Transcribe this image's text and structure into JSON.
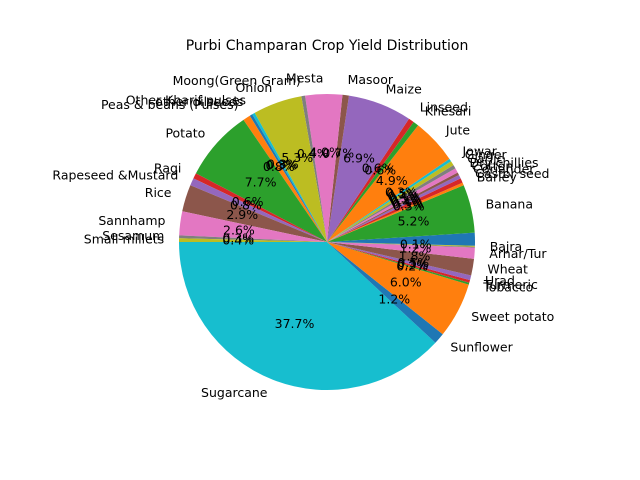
{
  "chart_data": {
    "type": "pie",
    "title": "Purbi Champaran Crop Yield Distribution",
    "start_angle_deg": 180,
    "direction": "counterclockwise",
    "label_threshold_pct": 0,
    "slices": [
      {
        "label": "Sugarcane",
        "value": 37.7,
        "pct": "37.7%",
        "color": "#17becf"
      },
      {
        "label": "Sunflower",
        "value": 1.2,
        "pct": "1.2%",
        "color": "#1f77b4"
      },
      {
        "label": "Sweet potato",
        "value": 6.0,
        "pct": "6.0%",
        "color": "#ff7f0e"
      },
      {
        "label": "Tobacco",
        "value": 0.2,
        "pct": "0.2%",
        "color": "#2ca02c"
      },
      {
        "label": "Turmeric",
        "value": 0.3,
        "pct": "0.3%",
        "color": "#d62728"
      },
      {
        "label": "Urad",
        "value": 0.5,
        "pct": "0.5%",
        "color": "#9467bd"
      },
      {
        "label": "Wheat",
        "value": 1.8,
        "pct": "1.8%",
        "color": "#8c564b"
      },
      {
        "label": "Arhar/Tur",
        "value": 1.2,
        "pct": "1.2%",
        "color": "#e377c2"
      },
      {
        "label": "Bajra",
        "value": 0.1,
        "pct": "0.1%",
        "color": "#7f7f7f"
      },
      {
        "label": "",
        "value": 0.1,
        "pct": "",
        "color": "#bcbd22"
      },
      {
        "label": "",
        "value": 1.4,
        "pct": "",
        "color": "#1f77b4"
      },
      {
        "label": "Banana",
        "value": 5.2,
        "pct": "5.2%",
        "color": "#2ca02c"
      },
      {
        "label": "Barley",
        "value": 0.3,
        "pct": "0.3%",
        "color": "#ff7f0e"
      },
      {
        "label": "Castor seed",
        "value": 0.5,
        "pct": "0.5%",
        "color": "#d62728"
      },
      {
        "label": "Coriander",
        "value": 0.4,
        "pct": "0.4%",
        "color": "#9467bd"
      },
      {
        "label": "Cotton",
        "value": 0.3,
        "pct": "0.3%",
        "color": "#8c564b"
      },
      {
        "label": "Dry chillies",
        "value": 0.5,
        "pct": "0.5%",
        "color": "#e377c2"
      },
      {
        "label": "Garlic",
        "value": 0.4,
        "pct": "0.4%",
        "color": "#7f7f7f"
      },
      {
        "label": "Ginger",
        "value": 0.5,
        "pct": "0.5%",
        "color": "#bcbd22"
      },
      {
        "label": "Jowar",
        "value": 0.3,
        "pct": "0.3%",
        "color": "#17becf"
      },
      {
        "label": "Jute",
        "value": 4.9,
        "pct": "4.9%",
        "color": "#ff7f0e"
      },
      {
        "label": "Khesari",
        "value": 0.6,
        "pct": "0.6%",
        "color": "#2ca02c"
      },
      {
        "label": "Linseed",
        "value": 0.6,
        "pct": "0.6%",
        "color": "#d62728"
      },
      {
        "label": "Maize",
        "value": 6.9,
        "pct": "6.9%",
        "color": "#9467bd"
      },
      {
        "label": "Masoor",
        "value": 0.7,
        "pct": "0.7%",
        "color": "#8c564b"
      },
      {
        "label": "Mesta",
        "value": 4.0,
        "pct": "4.0%",
        "color": "#e377c2"
      },
      {
        "label": "Moong(Green Gram)",
        "value": 0.4,
        "pct": "0.4%",
        "color": "#7f7f7f"
      },
      {
        "label": "Onion",
        "value": 5.3,
        "pct": "5.3%",
        "color": "#bcbd22"
      },
      {
        "label": "Other Kharif pulses",
        "value": 0.3,
        "pct": "0.3%",
        "color": "#17becf"
      },
      {
        "label": "other oilseeds",
        "value": 0.3,
        "pct": "0.3%",
        "color": "#1f77b4"
      },
      {
        "label": "Peas & beans (Pulses)",
        "value": 0.8,
        "pct": "0.8%",
        "color": "#ff7f0e"
      },
      {
        "label": "Potato",
        "value": 7.7,
        "pct": "7.7%",
        "color": "#2ca02c"
      },
      {
        "label": "Ragi",
        "value": 0.6,
        "pct": "0.6%",
        "color": "#d62728"
      },
      {
        "label": "Rapeseed &Mustard",
        "value": 0.8,
        "pct": "0.8%",
        "color": "#9467bd"
      },
      {
        "label": "Rice",
        "value": 2.9,
        "pct": "2.9%",
        "color": "#8c564b"
      },
      {
        "label": "Sannhamp",
        "value": 2.6,
        "pct": "2.6%",
        "color": "#e377c2"
      },
      {
        "label": "Sesamum",
        "value": 0.3,
        "pct": "0.3%",
        "color": "#7f7f7f"
      },
      {
        "label": "Small millets",
        "value": 0.4,
        "pct": "0.4%",
        "color": "#bcbd22"
      }
    ]
  }
}
